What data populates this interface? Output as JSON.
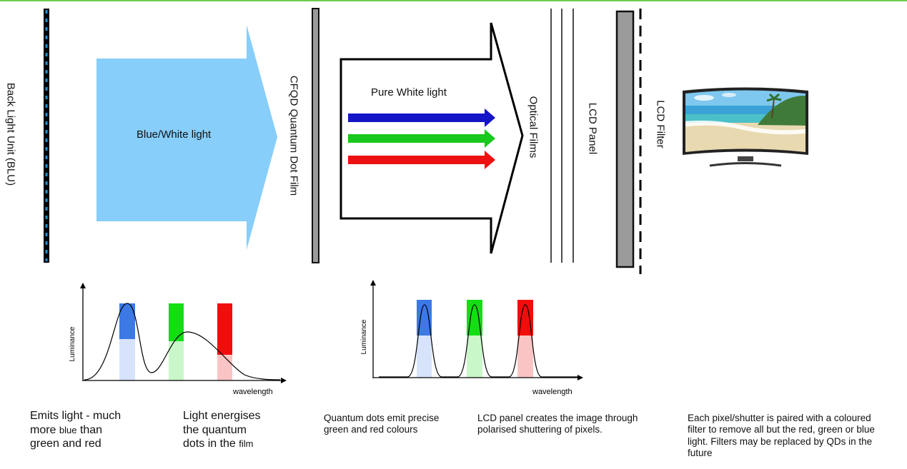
{
  "colors": {
    "top_bar": "#6fcf4f",
    "blue_light": "#87cefa",
    "blue": "#1515c8",
    "green": "#19c81c",
    "red": "#ee1111"
  },
  "layers": {
    "blu": "Back Light Unit (BLU)",
    "qd_film": "CFQD Quantum Dot Film",
    "optical_films": "Optical Films",
    "lcd_panel": "LCD Panel",
    "lcd_filter": "LCD Filter"
  },
  "arrows": {
    "blue_white": "Blue/White light",
    "pure_white": "Pure White light"
  },
  "tv_image": "curved-tv-beach-icon",
  "chart_data": [
    {
      "type": "line",
      "title": "",
      "ylabel": "Luminance",
      "xlabel": "wavelength",
      "highlight_bands": [
        "blue",
        "green",
        "red"
      ],
      "series": [
        {
          "shape": "narrow blue peak followed by broad green-red hump"
        }
      ]
    },
    {
      "type": "line",
      "title": "",
      "ylabel": "Luminance",
      "xlabel": "wavelength",
      "highlight_bands": [
        "blue",
        "green",
        "red"
      ],
      "series": [
        {
          "shape": "three narrow peaks at blue, green and red"
        }
      ]
    }
  ],
  "captions": {
    "blu_emits_1": "Emits light - much",
    "blu_emits_2": "more",
    "blu_emits_2b": "blue",
    "blu_emits_2c": "than",
    "blu_emits_3": "green and red",
    "energise_1": "Light energises",
    "energise_2": "the quantum",
    "energise_3": "dots in the",
    "energise_3b": "film",
    "qd_emit": "Quantum dots emit precise green and red colours",
    "lcd_creates": "LCD panel creates the image through polarised shuttering of pixels.",
    "filter_desc": "Each pixel/shutter is paired with a coloured filter to remove all but the red, green or blue light. Filters may be replaced by QDs in the future"
  }
}
